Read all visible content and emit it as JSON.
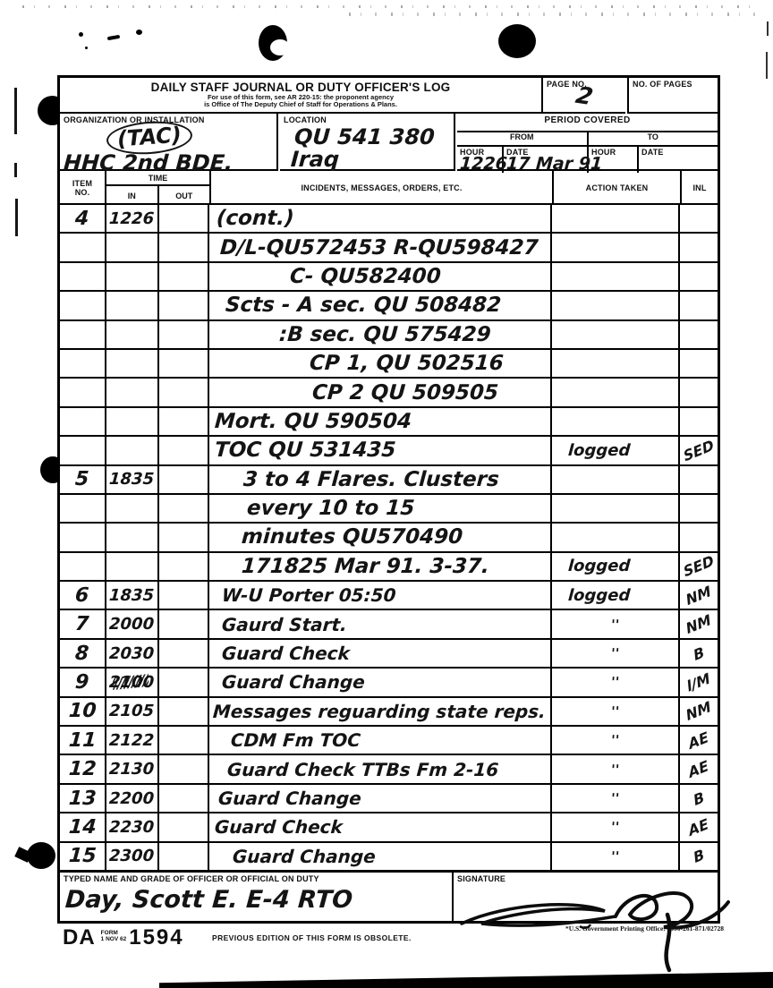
{
  "form": {
    "title": "DAILY STAFF JOURNAL OR DUTY OFFICER'S LOG",
    "subtitle1": "For use of this form, see AR 220-15: the proponent agency",
    "subtitle2": "is  Office of  The Deputy Chief of Staff for Operations & Plans.",
    "page_no_label": "PAGE NO.",
    "page_no_value": "2",
    "no_of_pages_label": "NO. OF PAGES",
    "no_of_pages_value": "",
    "org_label": "ORGANIZATION OR INSTALLATION",
    "org_value1": "(TAC)",
    "org_value2": "HHC 2nd BDE.",
    "loc_label": "LOCATION",
    "loc_value1": "QU 541 380",
    "loc_value2": "Iraq",
    "period_label": "PERIOD COVERED",
    "from_label": "FROM",
    "to_label": "TO",
    "hour_label": "HOUR",
    "date_label": "DATE",
    "from_hour": "1226",
    "from_date": "17 Mar 91",
    "to_hour": "",
    "to_date": ""
  },
  "table": {
    "headers": {
      "item1": "ITEM",
      "item2": "NO.",
      "time": "TIME",
      "in": "IN",
      "out": "OUT",
      "incidents": "INCIDENTS, MESSAGES, ORDERS, ETC.",
      "action": "ACTION TAKEN",
      "inl": "INL"
    },
    "rows": [
      {
        "item": "4",
        "t_in": "1226",
        "t_out": "",
        "incident": "(cont.)",
        "action": "",
        "inl": "",
        "indent": 8,
        "big": true
      },
      {
        "item": "",
        "t_in": "",
        "t_out": "",
        "incident": "D/L-QU572453  R-QU598427",
        "action": "",
        "inl": "",
        "indent": 12,
        "big": true
      },
      {
        "item": "",
        "t_in": "",
        "t_out": "",
        "incident": "C- QU582400",
        "action": "",
        "inl": "",
        "indent": 90,
        "big": true
      },
      {
        "item": "",
        "t_in": "",
        "t_out": "",
        "incident": "Scts - A sec.  QU 508482",
        "action": "",
        "inl": "",
        "indent": 18,
        "big": true
      },
      {
        "item": "",
        "t_in": "",
        "t_out": "",
        "incident": ":B sec.  QU 575429",
        "action": "",
        "inl": "",
        "indent": 78,
        "big": true
      },
      {
        "item": "",
        "t_in": "",
        "t_out": "",
        "incident": "CP 1,  QU 502516",
        "action": "",
        "inl": "",
        "indent": 112,
        "big": true
      },
      {
        "item": "",
        "t_in": "",
        "t_out": "",
        "incident": "CP 2  QU 509505",
        "action": "",
        "inl": "",
        "indent": 115,
        "big": true
      },
      {
        "item": "",
        "t_in": "",
        "t_out": "",
        "incident": "Mort. QU 590504",
        "action": "",
        "inl": "",
        "indent": 6,
        "big": true
      },
      {
        "item": "",
        "t_in": "",
        "t_out": "",
        "incident": "TOC QU 531435",
        "action": "logged",
        "inl": "SED",
        "indent": 6,
        "big": true
      },
      {
        "item": "5",
        "t_in": "1835",
        "t_out": "",
        "incident": "3 to 4 Flares. Clusters",
        "action": "",
        "inl": "",
        "indent": 38,
        "big": true
      },
      {
        "item": "",
        "t_in": "",
        "t_out": "",
        "incident": "every  10 to 15",
        "action": "",
        "inl": "",
        "indent": 42,
        "big": true
      },
      {
        "item": "",
        "t_in": "",
        "t_out": "",
        "incident": "minutes QU570490",
        "action": "",
        "inl": "",
        "indent": 36,
        "big": true
      },
      {
        "item": "",
        "t_in": "",
        "t_out": "",
        "incident": "171825 Mar 91. 3-37.",
        "action": "logged",
        "inl": "SED",
        "indent": 36,
        "big": true
      },
      {
        "item": "6",
        "t_in": "1835",
        "t_out": "",
        "incident": "W-U  Porter   05:50",
        "action": "logged",
        "inl": "NM",
        "indent": 14
      },
      {
        "item": "7",
        "t_in": "2000",
        "t_out": "",
        "incident": "Gaurd Start.",
        "action": "''",
        "inl": "NM",
        "indent": 14
      },
      {
        "item": "8",
        "t_in": "2030",
        "t_out": "",
        "incident": "Guard Check",
        "action": "''",
        "inl": "B",
        "indent": 14
      },
      {
        "item": "9",
        "t_in": "2100",
        "t_out": "",
        "incident": "Guard Change",
        "action": "''",
        "inl": "l/M",
        "indent": 14,
        "scribble": true
      },
      {
        "item": "10",
        "t_in": "2105",
        "t_out": "",
        "incident": "Messages reguarding state reps.",
        "action": "''",
        "inl": "NM",
        "indent": 4
      },
      {
        "item": "11",
        "t_in": "2122",
        "t_out": "",
        "incident": "CDM  Fm TOC",
        "action": "''",
        "inl": "AE",
        "indent": 24
      },
      {
        "item": "12",
        "t_in": "2130",
        "t_out": "",
        "incident": "Guard Check  TTBs Fm 2-16",
        "action": "''",
        "inl": "AE",
        "indent": 20
      },
      {
        "item": "13",
        "t_in": "2200",
        "t_out": "",
        "incident": "Guard Change",
        "action": "''",
        "inl": "B",
        "indent": 10
      },
      {
        "item": "14",
        "t_in": "2230",
        "t_out": "",
        "incident": "Guard Check",
        "action": "''",
        "inl": "AE",
        "indent": 6
      },
      {
        "item": "15",
        "t_in": "2300",
        "t_out": "",
        "incident": "Guard Change",
        "action": "''",
        "inl": "B",
        "indent": 26
      }
    ]
  },
  "footer": {
    "typed_label": "TYPED NAME AND GRADE OF OFFICER OR OFFICIAL ON DUTY",
    "typed_value": "Day, Scott E.  E-4      RTO",
    "sig_label": "SIGNATURE",
    "da": "DA",
    "form_word": "FORM",
    "form_date": "1 NOV 62",
    "form_number": "1594",
    "obsolete": "PREVIOUS EDITION OF THIS FORM IS OBSOLETE.",
    "gpo": "*U.S. Government Printing Office: 1990-261-871/02728"
  }
}
